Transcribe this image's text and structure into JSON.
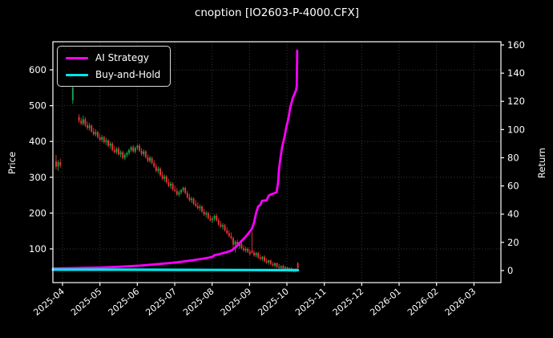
{
  "chart_data": {
    "type": "candlestick_with_lines",
    "title": "cnoption [IO2603-P-4000.CFX]",
    "price_axis": {
      "label": "Price",
      "ticks": [
        100,
        200,
        300,
        400,
        500,
        600
      ],
      "ylim": [
        5,
        680
      ]
    },
    "return_axis": {
      "label": "Return",
      "ticks": [
        0,
        20,
        40,
        60,
        80,
        100,
        120,
        140,
        160
      ],
      "ylim": [
        -9,
        162
      ]
    },
    "x_axis": {
      "tick_labels": [
        "2025-04",
        "2025-05",
        "2025-06",
        "2025-07",
        "2025-08",
        "2025-09",
        "2025-10",
        "2025-11",
        "2025-12",
        "2026-01",
        "2026-02",
        "2026-03"
      ]
    },
    "legend": [
      {
        "label": "AI Strategy",
        "color": "#ff00ff"
      },
      {
        "label": "Buy-and-Hold",
        "color": "#00e8e8"
      }
    ],
    "colors": {
      "up": "#21a447",
      "down": "#e93535",
      "grid": "#3c3c3c",
      "spine": "#ffffff",
      "bg": "#000000",
      "text": "#ffffff"
    },
    "grid": true,
    "legend_position": "upper left",
    "candles_ohlc": [
      [
        345,
        362,
        322,
        330
      ],
      [
        330,
        348,
        318,
        342
      ],
      [
        342,
        352,
        326,
        334
      ],
      null,
      null,
      null,
      null,
      null,
      [
        515,
        553,
        505,
        550
      ],
      null,
      null,
      [
        468,
        476,
        452,
        458
      ],
      [
        458,
        466,
        446,
        450
      ],
      [
        450,
        472,
        444,
        462
      ],
      [
        462,
        468,
        440,
        446
      ],
      [
        446,
        456,
        432,
        438
      ],
      [
        438,
        452,
        430,
        444
      ],
      [
        444,
        448,
        424,
        428
      ],
      [
        428,
        438,
        416,
        420
      ],
      [
        420,
        434,
        414,
        426
      ],
      [
        426,
        430,
        408,
        412
      ],
      [
        412,
        422,
        400,
        405
      ],
      [
        405,
        418,
        398,
        412
      ],
      [
        412,
        416,
        394,
        398
      ],
      [
        398,
        410,
        390,
        403
      ],
      [
        403,
        406,
        384,
        388
      ],
      [
        388,
        400,
        380,
        394
      ],
      [
        394,
        398,
        372,
        376
      ],
      [
        376,
        388,
        366,
        370
      ],
      [
        370,
        384,
        364,
        380
      ],
      [
        380,
        386,
        360,
        364
      ],
      [
        364,
        376,
        356,
        370
      ],
      [
        370,
        374,
        350,
        354
      ],
      [
        354,
        368,
        348,
        362
      ],
      [
        362,
        372,
        356,
        368
      ],
      [
        368,
        380,
        362,
        376
      ],
      [
        376,
        388,
        370,
        384
      ],
      [
        384,
        390,
        368,
        372
      ],
      [
        372,
        386,
        366,
        382
      ],
      [
        382,
        392,
        376,
        388
      ],
      [
        388,
        394,
        370,
        374
      ],
      [
        374,
        382,
        360,
        365
      ],
      [
        365,
        378,
        358,
        372
      ],
      [
        372,
        376,
        352,
        356
      ],
      [
        356,
        364,
        342,
        346
      ],
      [
        346,
        360,
        340,
        354
      ],
      [
        354,
        358,
        336,
        340
      ],
      [
        340,
        348,
        326,
        330
      ],
      [
        330,
        338,
        314,
        318
      ],
      [
        318,
        330,
        310,
        324
      ],
      [
        324,
        328,
        302,
        306
      ],
      [
        306,
        316,
        292,
        296
      ],
      [
        296,
        308,
        288,
        302
      ],
      [
        302,
        306,
        282,
        286
      ],
      [
        286,
        296,
        272,
        276
      ],
      [
        276,
        288,
        268,
        282
      ],
      [
        282,
        286,
        262,
        266
      ],
      [
        266,
        276,
        258,
        262
      ],
      [
        262,
        270,
        248,
        252
      ],
      [
        252,
        264,
        246,
        258
      ],
      [
        258,
        268,
        252,
        264
      ],
      [
        264,
        274,
        258,
        270
      ],
      [
        270,
        274,
        252,
        256
      ],
      [
        256,
        262,
        240,
        244
      ],
      [
        244,
        254,
        232,
        236
      ],
      [
        236,
        246,
        228,
        240
      ],
      [
        240,
        244,
        222,
        226
      ],
      [
        226,
        236,
        216,
        220
      ],
      [
        220,
        230,
        210,
        214
      ],
      [
        214,
        224,
        206,
        218
      ],
      [
        218,
        222,
        200,
        204
      ],
      [
        204,
        212,
        192,
        196
      ],
      [
        196,
        206,
        188,
        200
      ],
      [
        200,
        204,
        182,
        186
      ],
      [
        186,
        194,
        176,
        180
      ],
      [
        180,
        190,
        172,
        184
      ],
      [
        184,
        196,
        178,
        192
      ],
      [
        192,
        198,
        176,
        180
      ],
      [
        180,
        186,
        164,
        168
      ],
      [
        168,
        178,
        158,
        162
      ],
      [
        162,
        172,
        154,
        166
      ],
      [
        166,
        170,
        148,
        152
      ],
      [
        152,
        160,
        140,
        144
      ],
      [
        144,
        152,
        132,
        136
      ],
      [
        136,
        146,
        126,
        130
      ],
      [
        130,
        134,
        94,
        112
      ],
      [
        112,
        124,
        90,
        120
      ],
      [
        120,
        126,
        104,
        108
      ],
      [
        108,
        118,
        100,
        114
      ],
      [
        114,
        118,
        98,
        102
      ],
      [
        102,
        110,
        92,
        96
      ],
      [
        96,
        106,
        90,
        100
      ],
      [
        100,
        104,
        88,
        92
      ],
      [
        92,
        98,
        82,
        86
      ],
      [
        95,
        150,
        86,
        90
      ],
      [
        90,
        96,
        78,
        82
      ],
      [
        82,
        92,
        76,
        88
      ],
      [
        88,
        92,
        72,
        76
      ],
      [
        76,
        84,
        68,
        72
      ],
      [
        72,
        80,
        66,
        78
      ],
      [
        78,
        82,
        62,
        66
      ],
      [
        66,
        74,
        58,
        62
      ],
      [
        62,
        70,
        56,
        68
      ],
      [
        68,
        70,
        54,
        58
      ],
      [
        58,
        64,
        50,
        54
      ],
      [
        54,
        62,
        48,
        60
      ],
      [
        60,
        62,
        46,
        50
      ],
      [
        50,
        58,
        44,
        47
      ],
      [
        47,
        54,
        42,
        52
      ],
      [
        52,
        56,
        42,
        45
      ],
      [
        45,
        52,
        40,
        48
      ],
      [
        48,
        50,
        38,
        42
      ],
      [
        42,
        48,
        36,
        46
      ],
      [
        46,
        48,
        36,
        39
      ],
      [
        39,
        45,
        34,
        43
      ],
      [
        43,
        46,
        34,
        37
      ],
      [
        60,
        63,
        43,
        46
      ]
    ],
    "series": [
      {
        "name": "AI Strategy",
        "axis": "return",
        "color": "#ff00ff",
        "width": 2.8,
        "points": [
          [
            -1.5,
            1.5
          ],
          [
            5,
            1.6
          ],
          [
            11,
            1.8
          ],
          [
            20,
            2.1
          ],
          [
            30,
            2.7
          ],
          [
            40,
            3.5
          ],
          [
            50,
            4.7
          ],
          [
            57,
            5.7
          ],
          [
            61,
            6.4
          ],
          [
            66,
            7.4
          ],
          [
            70,
            8.3
          ],
          [
            73,
            9.1
          ],
          [
            75,
            9.7
          ],
          [
            76,
            11.0
          ],
          [
            78,
            11.5
          ],
          [
            80,
            12.3
          ],
          [
            82,
            13.1
          ],
          [
            84,
            14.1
          ],
          [
            86,
            16.3
          ],
          [
            88,
            19.5
          ],
          [
            90,
            22.5
          ],
          [
            92,
            25.8
          ],
          [
            94,
            29.8
          ],
          [
            95,
            34.0
          ],
          [
            96,
            41.0
          ],
          [
            97,
            45.6
          ],
          [
            98,
            46.5
          ],
          [
            98.8,
            49.5
          ],
          [
            101,
            49.8
          ],
          [
            102,
            53.0
          ],
          [
            103,
            54.0
          ],
          [
            105,
            55.0
          ],
          [
            105.8,
            55.5
          ],
          [
            106.5,
            62.0
          ],
          [
            107,
            72.0
          ],
          [
            107.7,
            80.0
          ],
          [
            108.5,
            88.0
          ],
          [
            109.5,
            94.0
          ],
          [
            110.4,
            101.0
          ],
          [
            111.5,
            108.0
          ],
          [
            112.3,
            115.0
          ],
          [
            113.5,
            122.0
          ],
          [
            114.6,
            126.0
          ],
          [
            115.2,
            128.0
          ],
          [
            115.5,
            131.0
          ],
          [
            115.7,
            156.0
          ]
        ]
      },
      {
        "name": "Buy-and-Hold",
        "axis": "return",
        "color": "#00e8e8",
        "width": 3.2,
        "points": [
          [
            -1.5,
            0.6
          ],
          [
            30,
            0.6
          ],
          [
            60,
            0.5
          ],
          [
            90,
            0.4
          ],
          [
            116,
            0.3
          ]
        ]
      }
    ]
  }
}
